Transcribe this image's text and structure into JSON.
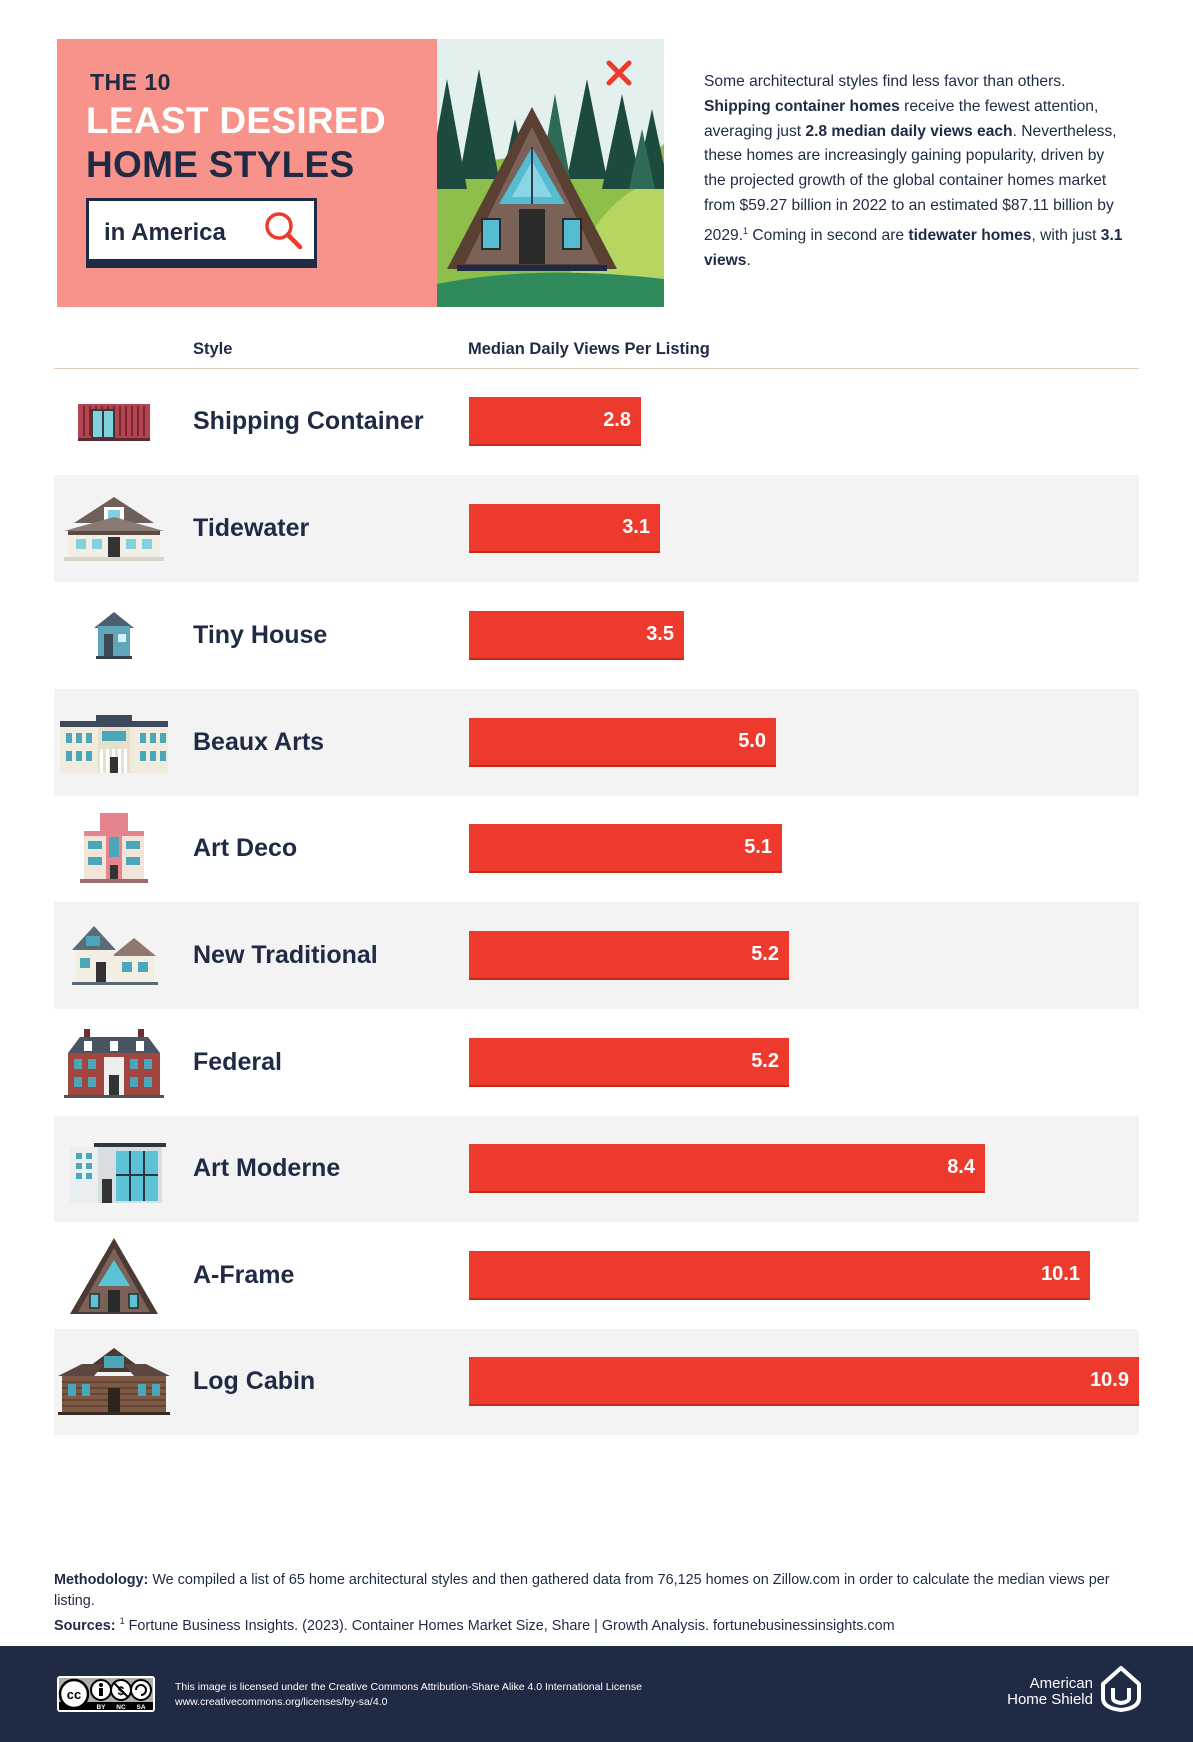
{
  "header": {
    "kicker": "THE 10",
    "title_line1": "LEAST DESIRED",
    "title_line2": "HOME STYLES",
    "search_text": "in America"
  },
  "intro": {
    "p1": "Some architectural styles find less favor than others. ",
    "b1": "Shipping container homes",
    "p2": " receive the fewest attention, averaging just ",
    "b2": "2.8 median daily views each",
    "p3": ". Nevertheless, these homes are increasingly gaining popularity, driven by the projected growth of the global container homes market from $59.27 billion in 2022 to an estimated $87.11 billion by 2029.",
    "sup": "1",
    "p4": " Coming in second are ",
    "b3": "tidewater homes",
    "p5": ", with just ",
    "b4": "3.1 views",
    "p6": "."
  },
  "table": {
    "col_style": "Style",
    "col_views": "Median Daily Views Per Listing"
  },
  "chart_data": {
    "type": "bar",
    "orientation": "horizontal",
    "title": "THE 10 LEAST DESIRED HOME STYLES in America",
    "xlabel": "Median Daily Views Per Listing",
    "ylabel": "Style",
    "xlim": [
      0,
      10.9
    ],
    "categories": [
      "Shipping Container",
      "Tidewater",
      "Tiny House",
      "Beaux Arts",
      "Art Deco",
      "New Traditional",
      "Federal",
      "Art Moderne",
      "A-Frame",
      "Log Cabin"
    ],
    "values": [
      2.8,
      3.1,
      3.5,
      5.0,
      5.1,
      5.2,
      5.2,
      8.4,
      10.1,
      10.9
    ],
    "value_labels": [
      "2.8",
      "3.1",
      "3.5",
      "5.0",
      "5.1",
      "5.2",
      "5.2",
      "8.4",
      "10.1",
      "10.9"
    ],
    "icons": [
      "shipping-container-icon",
      "tidewater-house-icon",
      "tiny-house-icon",
      "beaux-arts-house-icon",
      "art-deco-house-icon",
      "new-traditional-house-icon",
      "federal-house-icon",
      "art-moderne-house-icon",
      "a-frame-house-icon",
      "log-cabin-icon"
    ],
    "bar_color": "#ee3a2c"
  },
  "notes": {
    "method_label": "Methodology:",
    "method_text": " We compiled a list of 65 home architectural styles and then gathered data from 76,125 homes on Zillow.com in order to calculate the median views per listing.",
    "sources_label": "Sources:",
    "sources_sup": "1",
    "sources_text": " Fortune Business Insights. (2023). Container Homes Market Size, Share | Growth Analysis. fortunebusinessinsights.com"
  },
  "footer": {
    "cc_labels": [
      "BY",
      "NC",
      "SA"
    ],
    "license_line1": "This image is licensed under the Creative Commons Attribution-Share Alike 4.0 International License",
    "license_line2": "www.creativecommons.org/licenses/by-sa/4.0",
    "brand_line1": "American",
    "brand_line2": "Home Shield"
  },
  "colors": {
    "navy": "#1f2a44",
    "salmon": "#f7938a",
    "bar_red": "#ee3a2c",
    "row_shade": "#f3f3f3"
  }
}
